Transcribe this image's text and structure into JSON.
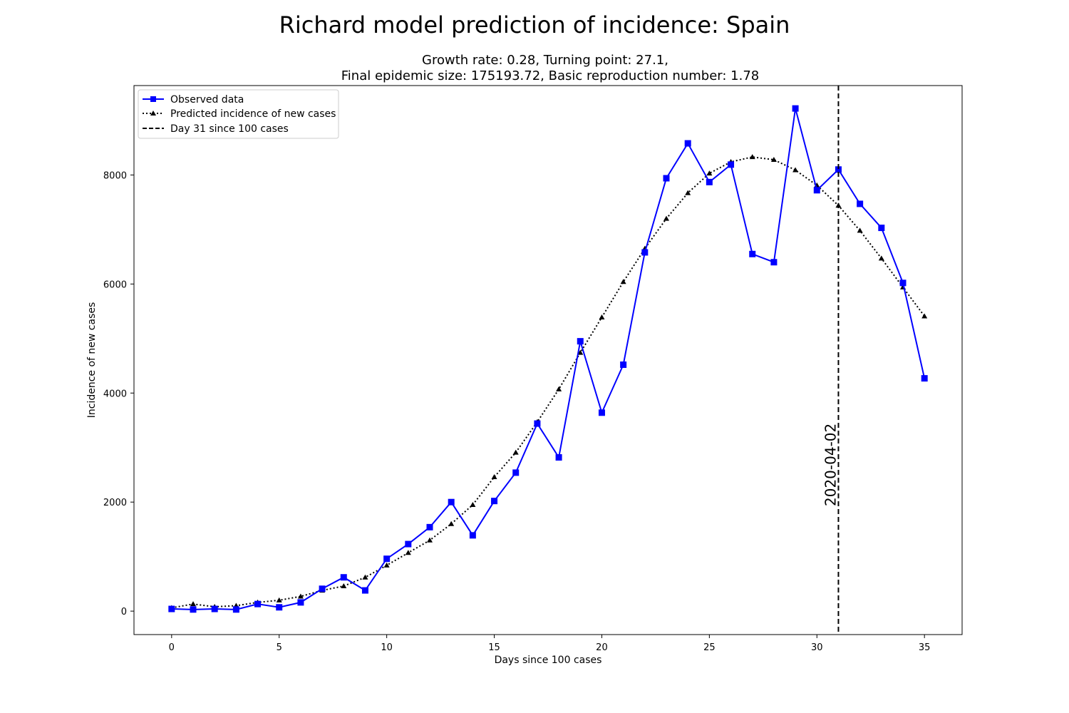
{
  "chart_data": {
    "type": "line",
    "title": "Richard model prediction of incidence: Spain",
    "subtitle_line1": "Growth rate: 0.28, Turning point: 27.1,",
    "subtitle_line2": "Final epidemic size: 175193.72, Basic reproduction number: 1.78",
    "xlabel": "Days since 100 cases",
    "ylabel": "Incidence of new cases",
    "xlim": [
      -1.75,
      36.75
    ],
    "ylim": [
      -430,
      9640
    ],
    "x_ticks": [
      0,
      5,
      10,
      15,
      20,
      25,
      30,
      35
    ],
    "y_ticks": [
      0,
      2000,
      4000,
      6000,
      8000
    ],
    "legend_position": "upper left",
    "grid": false,
    "series": [
      {
        "name": "Observed data",
        "color": "#0000ff",
        "line_style": "solid",
        "marker": "square",
        "x": [
          0,
          1,
          2,
          3,
          4,
          5,
          6,
          7,
          8,
          9,
          10,
          11,
          12,
          13,
          14,
          15,
          16,
          17,
          18,
          19,
          20,
          21,
          22,
          23,
          24,
          25,
          26,
          27,
          28,
          29,
          30,
          31,
          32,
          33,
          34,
          35
        ],
        "values": [
          40,
          30,
          40,
          30,
          130,
          70,
          160,
          410,
          620,
          380,
          960,
          1230,
          1540,
          2000,
          1390,
          2020,
          2540,
          3440,
          2820,
          4950,
          3640,
          4520,
          6580,
          7940,
          8580,
          7870,
          8190,
          6550,
          6400,
          9220,
          7720,
          8100,
          7470,
          7030,
          6020,
          4270
        ]
      },
      {
        "name": "Predicted incidence of new cases",
        "color": "#000000",
        "line_style": "dotted",
        "marker": "triangle",
        "x": [
          0,
          1,
          2,
          3,
          4,
          5,
          6,
          7,
          8,
          9,
          10,
          11,
          12,
          13,
          14,
          15,
          16,
          17,
          18,
          19,
          20,
          21,
          22,
          23,
          24,
          25,
          26,
          27,
          28,
          29,
          30,
          31,
          32,
          33,
          34,
          35
        ],
        "values": [
          60,
          130,
          80,
          100,
          160,
          200,
          270,
          380,
          460,
          620,
          840,
          1070,
          1300,
          1600,
          1950,
          2460,
          2910,
          3470,
          4070,
          4740,
          5390,
          6040,
          6650,
          7200,
          7670,
          8030,
          8240,
          8330,
          8280,
          8090,
          7810,
          7440,
          6980,
          6470,
          5940,
          5410
        ]
      }
    ],
    "vline": {
      "name": "Day 31 since 100 cases",
      "x": 31,
      "label": "2020-04-02",
      "color": "#000000",
      "line_style": "dashed"
    }
  }
}
